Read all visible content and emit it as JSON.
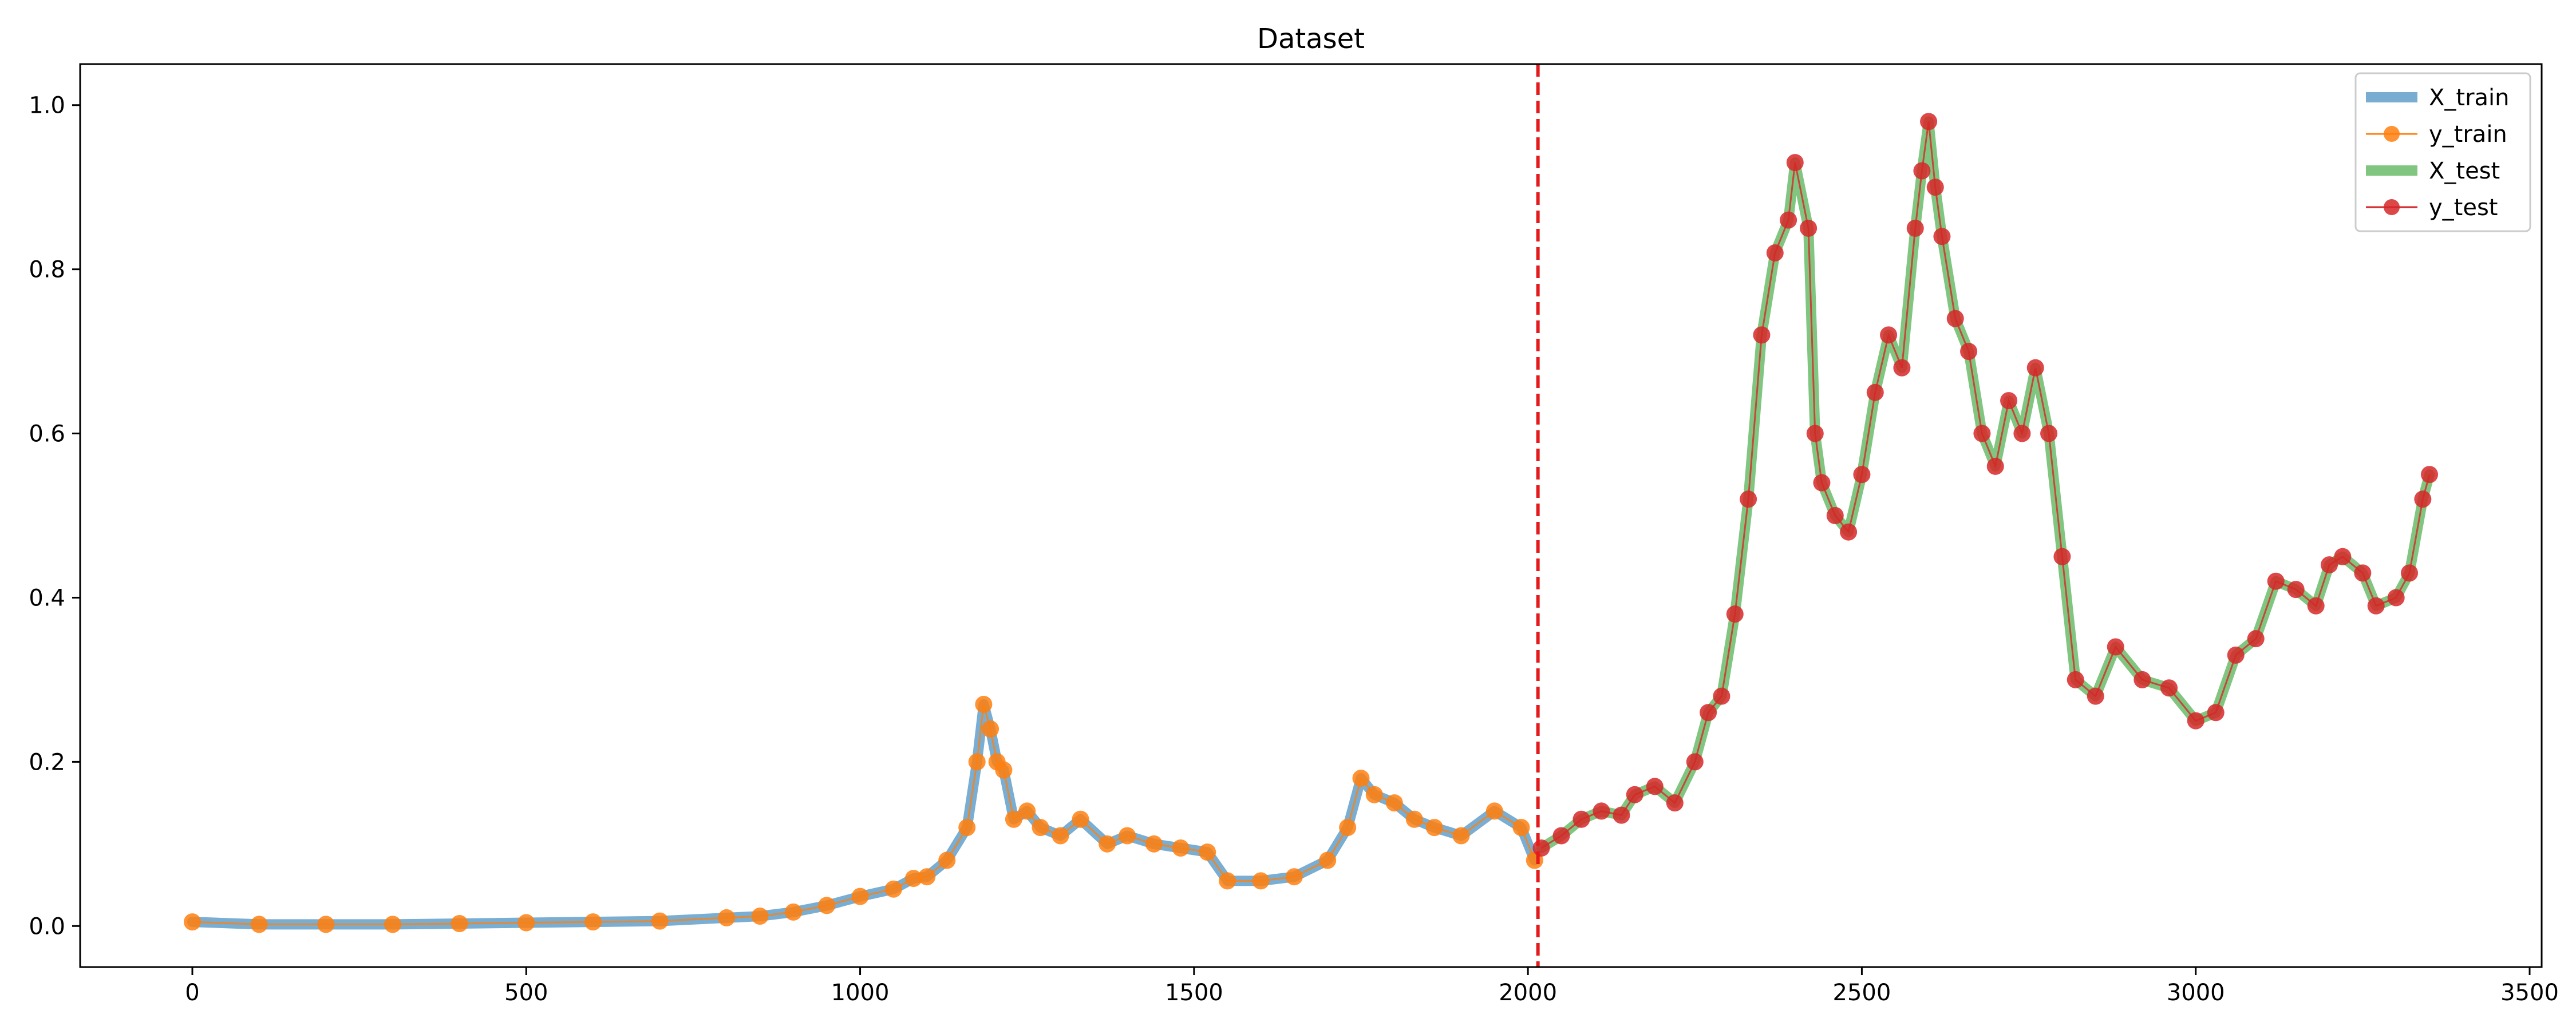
{
  "chart_data": {
    "type": "line",
    "title": "Dataset",
    "xlabel": "",
    "ylabel": "",
    "xlim": [
      -168,
      3518
    ],
    "ylim": [
      -0.05,
      1.05
    ],
    "xticks": [
      0,
      500,
      1000,
      1500,
      2000,
      2500,
      3000,
      3500
    ],
    "yticks": [
      0.0,
      0.2,
      0.4,
      0.6,
      0.8,
      1.0
    ],
    "xtick_labels": [
      "0",
      "500",
      "1000",
      "1500",
      "2000",
      "2500",
      "3000",
      "3500"
    ],
    "ytick_labels": [
      "0.0",
      "0.2",
      "0.4",
      "0.6",
      "0.8",
      "1.0"
    ],
    "grid": false,
    "legend_position": "top-right",
    "split_line": {
      "x": 2015,
      "color": "#e41a1c",
      "style": "dashed"
    },
    "series": [
      {
        "name": "X_train",
        "color": "#1f77b4",
        "kind": "thick-line",
        "x": [
          0,
          100,
          200,
          300,
          400,
          500,
          600,
          700,
          800,
          850,
          900,
          950,
          1000,
          1050,
          1080,
          1100,
          1130,
          1160,
          1175,
          1185,
          1195,
          1205,
          1215,
          1230,
          1250,
          1270,
          1300,
          1330,
          1370,
          1400,
          1440,
          1480,
          1520,
          1550,
          1600,
          1650,
          1700,
          1730,
          1750,
          1770,
          1800,
          1830,
          1860,
          1900,
          1950,
          1990,
          2010
        ],
        "values": [
          0.005,
          0.002,
          0.002,
          0.002,
          0.003,
          0.004,
          0.005,
          0.006,
          0.01,
          0.012,
          0.017,
          0.025,
          0.036,
          0.045,
          0.058,
          0.06,
          0.08,
          0.12,
          0.2,
          0.27,
          0.24,
          0.2,
          0.19,
          0.13,
          0.14,
          0.12,
          0.11,
          0.13,
          0.1,
          0.11,
          0.1,
          0.095,
          0.09,
          0.055,
          0.055,
          0.06,
          0.08,
          0.12,
          0.18,
          0.16,
          0.15,
          0.13,
          0.12,
          0.11,
          0.14,
          0.12,
          0.08
        ]
      },
      {
        "name": "y_train",
        "color": "#ff7f0e",
        "kind": "markers",
        "x": [
          0,
          100,
          200,
          300,
          400,
          500,
          600,
          700,
          800,
          850,
          900,
          950,
          1000,
          1050,
          1080,
          1100,
          1130,
          1160,
          1175,
          1185,
          1195,
          1205,
          1215,
          1230,
          1250,
          1270,
          1300,
          1330,
          1370,
          1400,
          1440,
          1480,
          1520,
          1550,
          1600,
          1650,
          1700,
          1730,
          1750,
          1770,
          1800,
          1830,
          1860,
          1900,
          1950,
          1990,
          2010
        ],
        "values": [
          0.005,
          0.002,
          0.002,
          0.002,
          0.003,
          0.004,
          0.005,
          0.006,
          0.01,
          0.012,
          0.017,
          0.025,
          0.036,
          0.045,
          0.058,
          0.06,
          0.08,
          0.12,
          0.2,
          0.27,
          0.24,
          0.2,
          0.19,
          0.13,
          0.14,
          0.12,
          0.11,
          0.13,
          0.1,
          0.11,
          0.1,
          0.095,
          0.09,
          0.055,
          0.055,
          0.06,
          0.08,
          0.12,
          0.18,
          0.16,
          0.15,
          0.13,
          0.12,
          0.11,
          0.14,
          0.12,
          0.08
        ]
      },
      {
        "name": "X_test",
        "color": "#2ca02c",
        "kind": "thick-line",
        "x": [
          2020,
          2050,
          2080,
          2110,
          2140,
          2160,
          2190,
          2220,
          2250,
          2270,
          2290,
          2310,
          2330,
          2350,
          2370,
          2390,
          2400,
          2420,
          2430,
          2440,
          2460,
          2480,
          2500,
          2520,
          2540,
          2560,
          2580,
          2590,
          2600,
          2610,
          2620,
          2640,
          2660,
          2680,
          2700,
          2720,
          2740,
          2760,
          2780,
          2800,
          2820,
          2850,
          2880,
          2920,
          2960,
          3000,
          3030,
          3060,
          3090,
          3120,
          3150,
          3180,
          3200,
          3220,
          3250,
          3270,
          3300,
          3320,
          3340,
          3350
        ],
        "values": [
          0.095,
          0.11,
          0.13,
          0.14,
          0.135,
          0.16,
          0.17,
          0.15,
          0.2,
          0.26,
          0.28,
          0.38,
          0.52,
          0.72,
          0.82,
          0.86,
          0.93,
          0.85,
          0.6,
          0.54,
          0.5,
          0.48,
          0.55,
          0.65,
          0.72,
          0.68,
          0.85,
          0.92,
          0.98,
          0.9,
          0.84,
          0.74,
          0.7,
          0.6,
          0.56,
          0.64,
          0.6,
          0.68,
          0.6,
          0.45,
          0.3,
          0.28,
          0.34,
          0.3,
          0.29,
          0.25,
          0.26,
          0.33,
          0.35,
          0.42,
          0.41,
          0.39,
          0.44,
          0.45,
          0.43,
          0.39,
          0.4,
          0.43,
          0.52,
          0.55
        ]
      },
      {
        "name": "y_test",
        "color": "#d62728",
        "kind": "markers",
        "x": [
          2020,
          2050,
          2080,
          2110,
          2140,
          2160,
          2190,
          2220,
          2250,
          2270,
          2290,
          2310,
          2330,
          2350,
          2370,
          2390,
          2400,
          2420,
          2430,
          2440,
          2460,
          2480,
          2500,
          2520,
          2540,
          2560,
          2580,
          2590,
          2600,
          2610,
          2620,
          2640,
          2660,
          2680,
          2700,
          2720,
          2740,
          2760,
          2780,
          2800,
          2820,
          2850,
          2880,
          2920,
          2960,
          3000,
          3030,
          3060,
          3090,
          3120,
          3150,
          3180,
          3200,
          3220,
          3250,
          3270,
          3300,
          3320,
          3340,
          3350
        ],
        "values": [
          0.095,
          0.11,
          0.13,
          0.14,
          0.135,
          0.16,
          0.17,
          0.15,
          0.2,
          0.26,
          0.28,
          0.38,
          0.52,
          0.72,
          0.82,
          0.86,
          0.93,
          0.85,
          0.6,
          0.54,
          0.5,
          0.48,
          0.55,
          0.65,
          0.72,
          0.68,
          0.85,
          0.92,
          0.98,
          0.9,
          0.84,
          0.74,
          0.7,
          0.6,
          0.56,
          0.64,
          0.6,
          0.68,
          0.6,
          0.45,
          0.3,
          0.28,
          0.34,
          0.3,
          0.29,
          0.25,
          0.26,
          0.33,
          0.35,
          0.42,
          0.41,
          0.39,
          0.44,
          0.45,
          0.43,
          0.39,
          0.4,
          0.43,
          0.52,
          0.55
        ]
      }
    ]
  }
}
